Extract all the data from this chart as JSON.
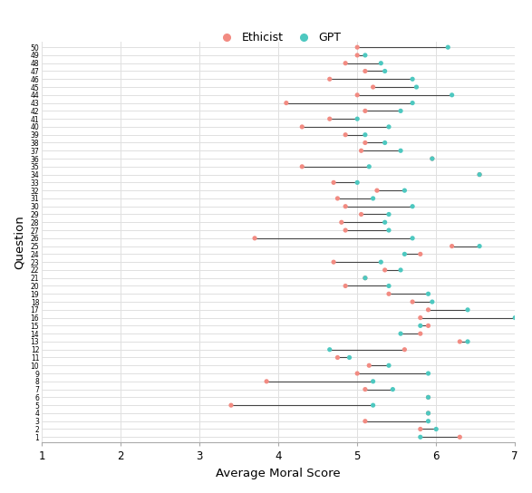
{
  "title": "",
  "xlabel": "Average Moral Score",
  "ylabel": "Question",
  "xlim": [
    1,
    7
  ],
  "xticks": [
    1,
    2,
    3,
    4,
    5,
    6,
    7
  ],
  "questions": [
    1,
    2,
    3,
    4,
    5,
    6,
    7,
    8,
    9,
    10,
    11,
    12,
    13,
    14,
    15,
    16,
    17,
    18,
    19,
    20,
    21,
    22,
    23,
    24,
    25,
    26,
    27,
    28,
    29,
    30,
    31,
    32,
    33,
    34,
    35,
    36,
    37,
    38,
    39,
    40,
    41,
    42,
    43,
    44,
    45,
    46,
    47,
    48,
    49,
    50
  ],
  "ethicist": [
    6.3,
    5.8,
    5.1,
    5.9,
    3.4,
    5.9,
    5.1,
    3.85,
    5.0,
    5.15,
    4.75,
    5.6,
    6.3,
    5.8,
    5.9,
    5.8,
    5.9,
    5.7,
    5.4,
    4.85,
    5.1,
    5.35,
    4.7,
    5.8,
    6.2,
    3.7,
    4.85,
    4.8,
    5.05,
    4.85,
    4.75,
    5.25,
    4.7,
    6.55,
    4.3,
    5.95,
    5.05,
    5.1,
    4.85,
    4.3,
    4.65,
    5.1,
    4.1,
    5.0,
    5.2,
    4.65,
    5.1,
    4.85,
    5.0,
    5.0
  ],
  "gpt": [
    5.8,
    6.0,
    5.9,
    5.9,
    5.2,
    5.9,
    5.45,
    5.2,
    5.9,
    5.4,
    4.9,
    4.65,
    6.4,
    5.55,
    5.8,
    7.0,
    6.4,
    5.95,
    5.9,
    5.4,
    5.1,
    5.55,
    5.3,
    5.6,
    6.55,
    5.7,
    5.4,
    5.35,
    5.4,
    5.7,
    5.2,
    5.6,
    5.0,
    6.55,
    5.15,
    5.95,
    5.55,
    5.35,
    5.1,
    5.4,
    5.0,
    5.55,
    5.7,
    6.2,
    5.75,
    5.7,
    5.35,
    5.3,
    5.1,
    6.15
  ],
  "ethicist_color": "#F28B82",
  "gpt_color": "#4DC8C0",
  "line_color": "#444444",
  "bg_color": "#ffffff",
  "grid_color": "#e0e0e0",
  "legend_ethicist": "Ethicist",
  "legend_gpt": "GPT",
  "figwidth": 5.87,
  "figheight": 5.44,
  "dpi": 100
}
